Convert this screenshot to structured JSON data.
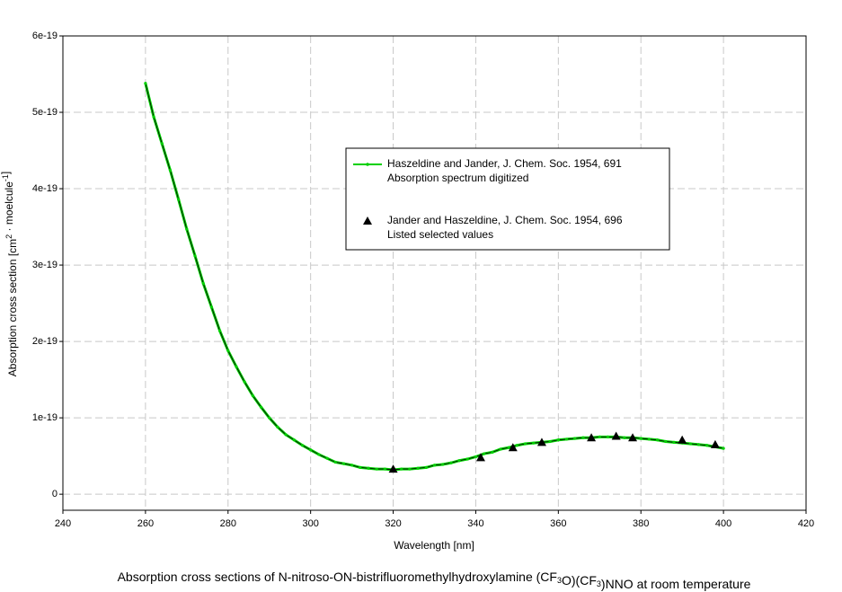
{
  "chart_data": {
    "type": "line",
    "title": "Absorption cross sections of  N-nitroso-ON-bistrifluoromethylhydroxylamine (CF3O)(CF3)NNO at room temperature",
    "xlabel": "Wavelength [nm]",
    "ylabel": "Absorption cross section [cm2 · moelcule-1]",
    "xlim": [
      240,
      420
    ],
    "xticks": [
      240,
      260,
      280,
      300,
      320,
      340,
      360,
      380,
      400,
      420
    ],
    "ylim": [
      -2.1e-20,
      6e-19
    ],
    "yticks": [
      0,
      1e-19,
      2e-19,
      3e-19,
      4e-19,
      5e-19,
      6e-19
    ],
    "grid": true,
    "series": [
      {
        "name": "Haszeldine and Jander, J. Chem. Soc. 1954, 691",
        "legend_detail": "Absorption spectrum digitized",
        "kind": "line",
        "color": "#00d000",
        "line_color": "#000000",
        "x": [
          260,
          262,
          264,
          266,
          268,
          270,
          272,
          274,
          276,
          278,
          280,
          282,
          284,
          286,
          288,
          290,
          292,
          294,
          296,
          298,
          300,
          302,
          304,
          306,
          308,
          310,
          312,
          314,
          316,
          318,
          320,
          322,
          324,
          326,
          328,
          330,
          332,
          334,
          336,
          338,
          340,
          342,
          344,
          346,
          348,
          350,
          352,
          354,
          356,
          358,
          360,
          362,
          364,
          366,
          368,
          370,
          372,
          374,
          376,
          378,
          380,
          382,
          384,
          386,
          388,
          390,
          392,
          394,
          396,
          398,
          400
        ],
        "values": [
          5.38e-19,
          4.94e-19,
          4.59e-19,
          4.24e-19,
          3.86e-19,
          3.47e-19,
          3.12e-19,
          2.76e-19,
          2.45e-19,
          2.14e-19,
          1.88e-19,
          1.67e-19,
          1.47e-19,
          1.29e-19,
          1.14e-19,
          1e-19,
          8.8e-20,
          7.8e-20,
          7.1e-20,
          6.4e-20,
          5.8e-20,
          5.2e-20,
          4.7e-20,
          4.2e-20,
          4e-20,
          3.8e-20,
          3.5e-20,
          3.4e-20,
          3.3e-20,
          3.3e-20,
          3.2e-20,
          3.3e-20,
          3.3e-20,
          3.4e-20,
          3.5e-20,
          3.8e-20,
          3.9e-20,
          4.1e-20,
          4.4e-20,
          4.6e-20,
          4.9e-20,
          5.3e-20,
          5.5e-20,
          5.9e-20,
          6.1e-20,
          6.4e-20,
          6.6e-20,
          6.7e-20,
          6.8e-20,
          6.9e-20,
          7.1e-20,
          7.2e-20,
          7.3e-20,
          7.4e-20,
          7.4e-20,
          7.5e-20,
          7.5e-20,
          7.5e-20,
          7.4e-20,
          7.4e-20,
          7.3e-20,
          7.2e-20,
          7.1e-20,
          6.9e-20,
          6.8e-20,
          6.7e-20,
          6.6e-20,
          6.5e-20,
          6.4e-20,
          6.2e-20,
          6e-20
        ]
      },
      {
        "name": "Jander and Haszeldine, J. Chem. Soc. 1954, 696",
        "legend_detail": "Listed selected values",
        "kind": "triangle",
        "color": "#000000",
        "x": [
          320,
          341.2,
          349,
          356,
          368,
          374,
          378,
          390,
          398
        ],
        "values": [
          3.3e-20,
          4.8e-20,
          6.1e-20,
          6.8e-20,
          7.4e-20,
          7.6e-20,
          7.4e-20,
          7.1e-20,
          6.5e-20
        ]
      }
    ]
  }
}
